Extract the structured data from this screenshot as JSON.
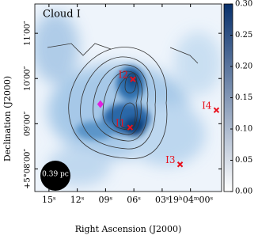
{
  "chart_data": {
    "type": "image",
    "title": "Cloud I",
    "xlabel": "Right Ascension (J2000)",
    "ylabel": "Declination (J2000)",
    "xlim": [
      16.5,
      -3.3
    ],
    "ylim": [
      -30,
      219
    ],
    "xticks": [
      {
        "value": 15,
        "label": "15ˢ"
      },
      {
        "value": 12,
        "label": "12ˢ"
      },
      {
        "value": 9,
        "label": "09ˢ"
      },
      {
        "value": 6,
        "label": "06ˢ"
      },
      {
        "value": 3,
        "label": "03ˢ"
      },
      {
        "value": 0,
        "label": "19ʰ04ᵐ00ˢ"
      }
    ],
    "yticks": [
      {
        "value": 0,
        "label": "+5°08′00″"
      },
      {
        "value": 60,
        "label": "09′00″"
      },
      {
        "value": 120,
        "label": "10′00″"
      },
      {
        "value": 180,
        "label": "11′00″"
      }
    ],
    "colorbar": {
      "lim": [
        0,
        0.3
      ],
      "ticks": [
        {
          "value": 0,
          "label": "0.00"
        },
        0.05,
        {
          "value": 0.1,
          "label": "0.10"
        },
        0.15,
        {
          "value": 0.2,
          "label": "0.20"
        },
        0.25,
        {
          "value": 0.3,
          "label": "0.30"
        }
      ],
      "colors": [
        "#ffffff",
        "#08306b"
      ]
    },
    "sources": {
      "color": "#e8101c",
      "labels": [
        "I1",
        "I2",
        "I3",
        "I4"
      ],
      "x": [
        6.4,
        6.1,
        1.1,
        -2.75
      ],
      "y": [
        55,
        119,
        6,
        78
      ]
    },
    "peak": {
      "color": "#e020e0",
      "x": 9.55,
      "y": 86
    },
    "scalebar_label": "0.39 pc"
  }
}
